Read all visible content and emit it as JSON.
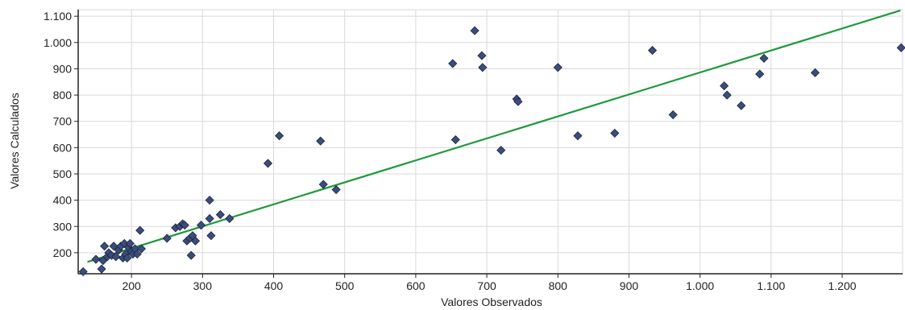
{
  "chart_data": {
    "type": "scatter",
    "xlabel": "Valores Observados",
    "ylabel": "Valores Calculados",
    "xlim": [
      125,
      1285
    ],
    "ylim": [
      120,
      1125
    ],
    "x_ticks": [
      {
        "value": 200,
        "label": "200"
      },
      {
        "value": 300,
        "label": "300"
      },
      {
        "value": 400,
        "label": "400"
      },
      {
        "value": 500,
        "label": "500"
      },
      {
        "value": 600,
        "label": "600"
      },
      {
        "value": 700,
        "label": "700"
      },
      {
        "value": 800,
        "label": "800"
      },
      {
        "value": 900,
        "label": "900"
      },
      {
        "value": 1000,
        "label": "1.000"
      },
      {
        "value": 1100,
        "label": "1.100"
      },
      {
        "value": 1200,
        "label": "1.200"
      }
    ],
    "y_ticks": [
      {
        "value": 200,
        "label": "200"
      },
      {
        "value": 300,
        "label": "300"
      },
      {
        "value": 400,
        "label": "400"
      },
      {
        "value": 500,
        "label": "500"
      },
      {
        "value": 600,
        "label": "600"
      },
      {
        "value": 700,
        "label": "700"
      },
      {
        "value": 800,
        "label": "800"
      },
      {
        "value": 900,
        "label": "900"
      },
      {
        "value": 1000,
        "label": "1.000"
      },
      {
        "value": 1100,
        "label": "1.100"
      }
    ],
    "grid": true,
    "series": [
      {
        "points": [
          [
            132,
            128
          ],
          [
            150,
            175
          ],
          [
            158,
            138
          ],
          [
            162,
            225
          ],
          [
            160,
            170
          ],
          [
            166,
            185
          ],
          [
            168,
            200
          ],
          [
            172,
            190
          ],
          [
            175,
            225
          ],
          [
            178,
            185
          ],
          [
            182,
            210
          ],
          [
            185,
            225
          ],
          [
            188,
            180
          ],
          [
            190,
            235
          ],
          [
            192,
            195
          ],
          [
            194,
            180
          ],
          [
            196,
            220
          ],
          [
            198,
            235
          ],
          [
            200,
            205
          ],
          [
            202,
            195
          ],
          [
            205,
            215
          ],
          [
            208,
            195
          ],
          [
            212,
            285
          ],
          [
            214,
            215
          ],
          [
            250,
            255
          ],
          [
            262,
            295
          ],
          [
            268,
            300
          ],
          [
            272,
            310
          ],
          [
            275,
            305
          ],
          [
            278,
            245
          ],
          [
            282,
            255
          ],
          [
            284,
            190
          ],
          [
            286,
            265
          ],
          [
            290,
            245
          ],
          [
            298,
            305
          ],
          [
            310,
            400
          ],
          [
            310,
            330
          ],
          [
            312,
            265
          ],
          [
            325,
            345
          ],
          [
            338,
            330
          ],
          [
            392,
            540
          ],
          [
            408,
            645
          ],
          [
            466,
            625
          ],
          [
            470,
            460
          ],
          [
            488,
            440
          ],
          [
            652,
            920
          ],
          [
            656,
            630
          ],
          [
            683,
            1045
          ],
          [
            693,
            950
          ],
          [
            694,
            905
          ],
          [
            720,
            590
          ],
          [
            742,
            785
          ],
          [
            744,
            775
          ],
          [
            800,
            905
          ],
          [
            828,
            645
          ],
          [
            880,
            655
          ],
          [
            933,
            970
          ],
          [
            962,
            725
          ],
          [
            1034,
            835
          ],
          [
            1038,
            800
          ],
          [
            1058,
            760
          ],
          [
            1084,
            880
          ],
          [
            1090,
            940
          ],
          [
            1162,
            885
          ],
          [
            1283,
            980
          ]
        ],
        "color": "#3b4d7a"
      }
    ],
    "trendline": {
      "x": [
        138,
        1282
      ],
      "y": [
        165,
        1122
      ],
      "color": "#1e9a3c"
    }
  }
}
